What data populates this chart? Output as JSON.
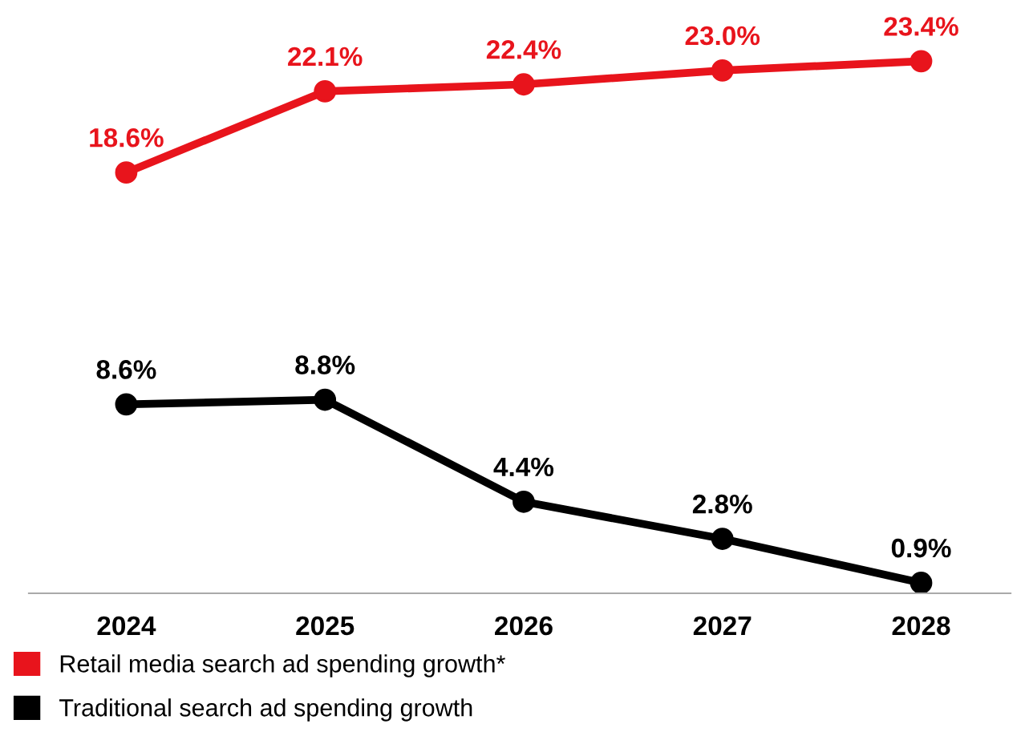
{
  "chart_data": {
    "type": "line",
    "categories": [
      "2024",
      "2025",
      "2026",
      "2027",
      "2028"
    ],
    "series": [
      {
        "name": "Retail media search ad spending growth*",
        "color": "#e8141c",
        "values": [
          18.6,
          22.1,
          22.4,
          23.0,
          23.4
        ],
        "value_labels": [
          "18.6%",
          "22.1%",
          "22.4%",
          "23.0%",
          "23.4%"
        ]
      },
      {
        "name": "Traditional search ad spending growth",
        "color": "#000000",
        "values": [
          8.6,
          8.8,
          4.4,
          2.8,
          0.9
        ],
        "value_labels": [
          "8.6%",
          "8.8%",
          "4.4%",
          "2.8%",
          "0.9%"
        ]
      }
    ],
    "marker": "circle",
    "line_style": "solid",
    "grid": false,
    "legend": "bottom"
  }
}
